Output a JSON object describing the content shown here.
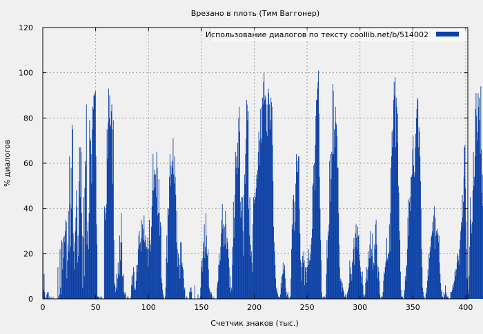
{
  "colors": {
    "background": "#f0f0f0",
    "series": "#0b40a6",
    "grid": "#a0a0a0",
    "axis": "#000000"
  },
  "chart_data": {
    "type": "bar",
    "title": "Врезано в плоть (Тим Ваггонер)",
    "xlabel": "Счетчик знаков (тыс.)",
    "ylabel": "% диалогов",
    "xlim": [
      0,
      402
    ],
    "ylim": [
      0,
      120
    ],
    "xticks": [
      "0",
      "50",
      "100",
      "150",
      "200",
      "250",
      "300",
      "350",
      "400"
    ],
    "yticks": [
      "0",
      "20",
      "40",
      "60",
      "80",
      "100",
      "120"
    ],
    "grid": true,
    "legend": "top-right",
    "series": [
      {
        "name": "Использование диалогов по тексту  coollib.net/b/514002",
        "color": "#0b40a6",
        "bin_step_k": 0.5,
        "values": [
          20,
          4,
          11,
          3,
          1,
          0,
          0,
          2,
          3,
          2,
          3,
          0,
          1,
          0,
          0,
          1,
          0,
          0,
          0,
          1,
          0,
          0,
          0,
          0,
          0,
          0,
          0,
          0,
          14,
          1,
          0,
          2,
          22,
          5,
          2,
          26,
          25,
          13,
          27,
          18,
          28,
          25,
          30,
          35,
          34,
          9,
          17,
          24,
          39,
          21,
          63,
          42,
          23,
          58,
          40,
          77,
          75,
          29,
          21,
          13,
          25,
          30,
          36,
          48,
          41,
          16,
          28,
          19,
          52,
          67,
          45,
          67,
          65,
          38,
          28,
          5,
          27,
          45,
          10,
          49,
          61,
          59,
          86,
          24,
          30,
          34,
          22,
          38,
          79,
          71,
          70,
          64,
          51,
          75,
          85,
          84,
          90,
          90,
          91,
          92,
          63,
          33,
          24,
          1,
          1,
          1,
          1,
          0,
          0,
          1,
          0,
          1,
          0,
          0,
          0,
          0,
          41,
          40,
          35,
          38,
          42,
          75,
          62,
          78,
          93,
          80,
          90,
          76,
          77,
          83,
          86,
          75,
          51,
          79,
          26,
          7,
          6,
          3,
          5,
          11,
          4,
          9,
          16,
          11,
          10,
          28,
          17,
          25,
          38,
          25,
          10,
          10,
          11,
          3,
          2,
          3,
          2,
          0,
          0,
          1,
          0,
          1,
          0,
          0,
          0,
          1,
          0,
          6,
          10,
          6,
          11,
          14,
          12,
          4,
          5,
          4,
          8,
          15,
          12,
          15,
          22,
          28,
          30,
          24,
          25,
          21,
          35,
          27,
          33,
          26,
          31,
          37,
          25,
          26,
          28,
          22,
          23,
          22,
          27,
          14,
          22,
          35,
          26,
          21,
          24,
          32,
          41,
          48,
          64,
          48,
          55,
          57,
          49,
          55,
          45,
          65,
          58,
          37,
          38,
          53,
          38,
          28,
          34,
          32,
          9,
          7,
          4,
          1,
          2,
          0,
          0,
          1,
          5,
          18,
          28,
          16,
          40,
          37,
          40,
          54,
          64,
          50,
          59,
          55,
          61,
          58,
          71,
          55,
          51,
          63,
          54,
          46,
          25,
          39,
          22,
          14,
          20,
          18,
          15,
          9,
          25,
          15,
          25,
          16,
          14,
          13,
          9,
          4,
          5,
          0,
          0,
          1,
          1,
          0,
          0,
          0,
          0,
          3,
          5,
          3,
          5,
          3,
          0,
          0,
          0,
          0,
          0,
          6,
          0,
          0,
          0,
          0,
          0,
          2,
          0,
          0,
          0,
          1,
          5,
          14,
          17,
          12,
          18,
          25,
          21,
          33,
          18,
          23,
          38,
          28,
          20,
          19,
          22,
          13,
          5,
          4,
          2,
          3,
          3,
          2,
          1,
          0,
          0,
          1,
          0,
          0,
          0,
          0,
          0,
          5,
          7,
          8,
          15,
          20,
          15,
          17,
          23,
          29,
          35,
          42,
          31,
          33,
          23,
          32,
          24,
          39,
          33,
          22,
          27,
          25,
          22,
          18,
          14,
          5,
          10,
          3,
          5,
          4,
          23,
          15,
          43,
          27,
          36,
          46,
          65,
          58,
          63,
          55,
          69,
          58,
          80,
          85,
          74,
          43,
          36,
          45,
          39,
          45,
          30,
          19,
          46,
          55,
          51,
          64,
          71,
          88,
          86,
          79,
          83,
          40,
          28,
          45,
          19,
          24,
          21,
          16,
          12,
          33,
          45,
          42,
          44,
          47,
          45,
          49,
          55,
          53,
          57,
          65,
          74,
          59,
          70,
          84,
          71,
          69,
          85,
          89,
          86,
          96,
          100,
          88,
          90,
          89,
          86,
          74,
          72,
          86,
          93,
          91,
          86,
          75,
          79,
          89,
          87,
          85,
          68,
          52,
          32,
          25,
          21,
          15,
          9,
          5,
          4,
          3,
          2,
          1,
          1,
          0,
          1,
          2,
          7,
          10,
          5,
          11,
          16,
          11,
          13,
          15,
          9,
          5,
          3,
          1,
          2,
          3,
          1,
          0,
          0,
          1,
          1,
          9,
          22,
          33,
          31,
          44,
          46,
          30,
          43,
          34,
          51,
          64,
          56,
          61,
          56,
          63,
          63,
          40,
          29,
          17,
          16,
          8,
          14,
          19,
          16,
          21,
          17,
          6,
          14,
          12,
          14,
          7,
          14,
          18,
          22,
          15,
          17,
          20,
          17,
          24,
          27,
          31,
          50,
          51,
          59,
          60,
          48,
          68,
          81,
          88,
          88,
          93,
          96,
          101,
          82,
          54,
          40,
          26,
          17,
          3,
          1,
          0,
          1,
          0,
          1,
          1,
          0,
          2,
          11,
          26,
          18,
          30,
          28,
          33,
          61,
          64,
          43,
          53,
          65,
          64,
          95,
          92,
          64,
          75,
          67,
          85,
          78,
          77,
          72,
          58,
          58,
          38,
          24,
          14,
          8,
          9,
          8,
          3,
          7,
          5,
          4,
          3,
          1,
          1,
          2,
          1,
          0,
          2,
          3,
          4,
          5,
          7,
          17,
          11,
          14,
          11,
          8,
          16,
          17,
          22,
          27,
          15,
          23,
          29,
          33,
          27,
          22,
          32,
          28,
          28,
          20,
          17,
          14,
          12,
          10,
          7,
          12,
          6,
          2,
          1,
          1,
          2,
          7,
          9,
          14,
          8,
          13,
          21,
          14,
          18,
          24,
          30,
          18,
          22,
          19,
          29,
          13,
          16,
          15,
          24,
          22,
          33,
          35,
          24,
          15,
          9,
          14,
          12,
          8,
          2,
          0,
          1,
          1,
          0,
          1,
          3,
          8,
          12,
          11,
          14,
          16,
          17,
          27,
          18,
          17,
          20,
          20,
          33,
          21,
          38,
          58,
          63,
          74,
          67,
          75,
          88,
          96,
          90,
          98,
          67,
          89,
          85,
          69,
          82,
          50,
          47,
          30,
          26,
          12,
          4,
          1,
          1,
          1,
          0,
          0,
          2,
          4,
          10,
          8,
          14,
          15,
          22,
          36,
          44,
          28,
          43,
          45,
          39,
          54,
          54,
          55,
          66,
          72,
          59,
          54,
          56,
          67,
          73,
          80,
          84,
          89,
          88,
          67,
          76,
          74,
          63,
          52,
          40,
          22,
          14,
          5,
          3,
          1,
          1,
          0,
          0,
          2,
          3,
          5,
          8,
          13,
          10,
          20,
          18,
          23,
          21,
          27,
          28,
          30,
          34,
          29,
          37,
          41,
          22,
          36,
          28,
          30,
          28,
          31,
          29,
          25,
          28,
          16,
          11,
          7,
          4,
          3,
          1,
          1,
          0,
          3,
          1,
          2,
          6,
          3,
          2,
          1,
          1,
          0,
          1,
          0,
          0,
          0,
          3,
          3,
          3,
          4,
          6,
          5,
          7,
          8,
          12,
          13,
          10,
          13,
          16,
          20,
          19,
          17,
          22,
          15,
          26,
          30,
          34,
          32,
          46,
          36,
          43,
          54,
          67,
          68,
          49,
          34,
          22,
          9,
          5,
          4,
          2,
          10,
          23,
          45,
          35,
          33,
          29,
          34,
          48,
          65,
          50,
          54,
          63,
          84,
          91,
          81,
          70,
          74,
          91,
          85,
          89,
          79,
          64,
          94,
          66,
          47,
          55,
          41,
          52,
          60,
          56,
          75,
          82,
          81,
          75,
          90,
          86,
          71,
          43,
          82,
          77,
          69,
          91,
          86,
          78,
          87,
          90,
          70,
          57,
          42,
          61,
          62,
          49,
          44,
          9,
          10,
          3,
          1
        ]
      }
    ]
  }
}
